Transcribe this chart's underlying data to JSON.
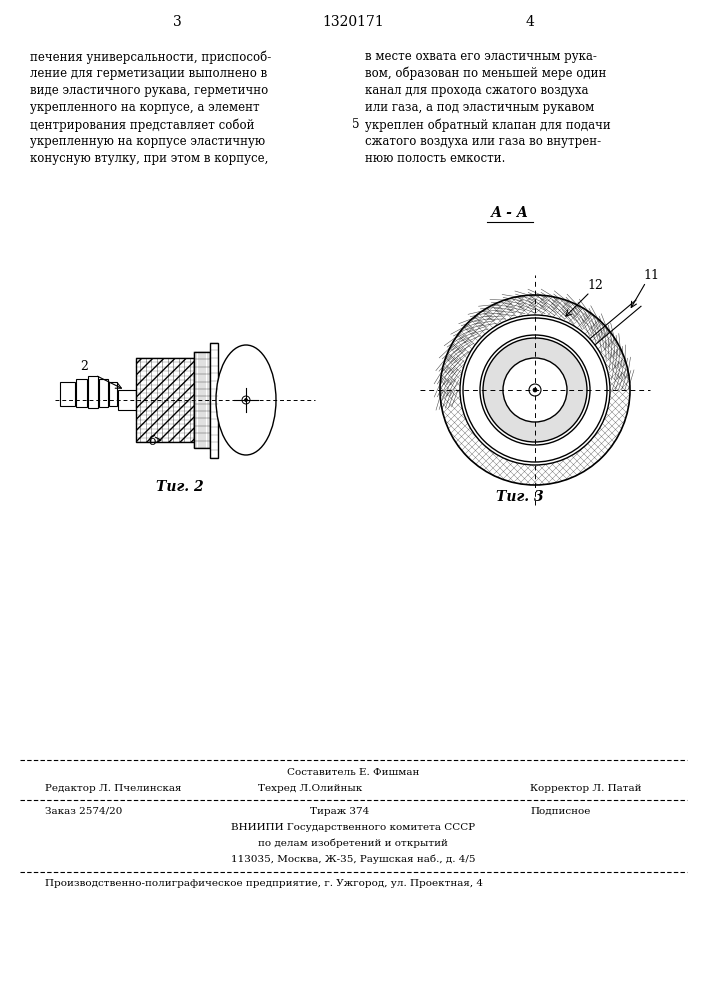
{
  "background_color": "#ffffff",
  "page_width": 7.07,
  "page_height": 10.0,
  "header_number_left": "3",
  "header_number_center": "1320171",
  "header_number_right": "4",
  "left_col_text": "печения универсальности, приспособ-\nление для герметизации выполнено в\nвиде эластичного рукава, герметично\nукрепленного на корпусе, а элемент\nцентрирования представляет собой\nукрепленную на корпусе эластичную\nконусную втулку, при этом в корпусе,",
  "right_col_x_marker": "5",
  "right_col_text": "в месте охвата его эластичным рука-\nвом, образован по меньшей мере один\nканал для прохода сжатого воздуха\nили газа, а под эластичным рукавом\nукреплен обратный клапан для подачи\nсжатого воздуха или газа во внутрен-\nнюю полость емкости.",
  "fig2_label": "Τиг. 2",
  "fig3_label": "Τиг. 3",
  "fig3_section_label": "А - А",
  "label_2": "2",
  "label_b": "б",
  "label_11": "11",
  "label_12": "12",
  "footer_editor": "Редактор Л. Пчелинская",
  "footer_composer": "Составитель Е. Фишман",
  "footer_techred": "Техред Л.Олийнык",
  "footer_corrector": "Корректор Л. Патай",
  "footer_order": "Заказ 2574/20",
  "footer_tirazh": "Тираж 374",
  "footer_podpisnoe": "Подписное",
  "footer_org1": "ВНИИПИ Государственного комитета СССР",
  "footer_org2": "по делам изобретений и открытий",
  "footer_org3": "113035, Москва, Ж-35, Раушская наб., д. 4/5",
  "footer_last": "Производственно-полиграфическое предприятие, г. Ужгород, ул. Проектная, 4",
  "line_color": "#000000",
  "text_color": "#000000",
  "hatch_color": "#555555"
}
